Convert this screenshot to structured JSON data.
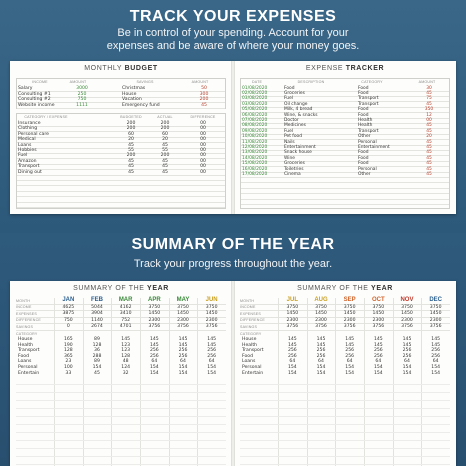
{
  "top": {
    "headline": "TRACK YOUR EXPENSES",
    "sub1": "Be in control of your spending. Account for your",
    "sub2": "expenses and be aware of where your money goes."
  },
  "budget": {
    "title_a": "MONTHLY ",
    "title_b": "BUDGET",
    "headers": [
      "INCOME",
      "AMOUNT",
      "SAVINGS",
      "AMOUNT"
    ],
    "income": [
      [
        "Salary",
        "3000"
      ],
      [
        "Consulting #1",
        "250"
      ],
      [
        "Consulting #2",
        "750"
      ],
      [
        "Website income",
        "1111"
      ]
    ],
    "savings": [
      [
        "Christmas",
        "50"
      ],
      [
        "House",
        "300"
      ],
      [
        "Vacation",
        "200"
      ],
      [
        "Emergency fund",
        "45"
      ]
    ],
    "cat_headers": [
      "CATEGORY / EXPENSE",
      "BUDGETED",
      "ACTUAL",
      "DIFFERENCE"
    ],
    "categories": [
      [
        "Insurance",
        "200",
        "200",
        "00"
      ],
      [
        "Clothing",
        "200",
        "200",
        "00"
      ],
      [
        "Personal care",
        "60",
        "60",
        "00"
      ],
      [
        "Medical",
        "20",
        "20",
        "00"
      ],
      [
        "Loans",
        "45",
        "45",
        "00"
      ],
      [
        "Hobbies",
        "55",
        "55",
        "00"
      ],
      [
        "Fuel",
        "200",
        "200",
        "00"
      ],
      [
        "Amazon",
        "45",
        "45",
        "00"
      ],
      [
        "Transport",
        "45",
        "45",
        "00"
      ],
      [
        "Dining out",
        "45",
        "45",
        "00"
      ]
    ]
  },
  "tracker": {
    "title_a": "EXPENSE ",
    "title_b": "TRACKER",
    "headers": [
      "DATE",
      "DESCRIPTION",
      "CATEGORY",
      "AMOUNT"
    ],
    "rows": [
      [
        "01/08/2020",
        "Food",
        "Food",
        "30"
      ],
      [
        "02/08/2020",
        "Groceries",
        "Food",
        "45"
      ],
      [
        "03/08/2020",
        "Fuel",
        "Transport",
        "75"
      ],
      [
        "03/08/2020",
        "Oil change",
        "Transport",
        "45"
      ],
      [
        "05/08/2020",
        "Milk, 4 bread",
        "Food",
        "350"
      ],
      [
        "06/08/2020",
        "Wine, & snacks",
        "Food",
        "12"
      ],
      [
        "07/08/2020",
        "Doctor",
        "Health",
        "00"
      ],
      [
        "08/08/2020",
        "Medicines",
        "Health",
        "45"
      ],
      [
        "09/08/2020",
        "Fuel",
        "Transport",
        "45"
      ],
      [
        "10/08/2020",
        "Pet food",
        "Other",
        "20"
      ],
      [
        "11/08/2020",
        "Nails",
        "Personal",
        "45"
      ],
      [
        "12/08/2020",
        "Entertainment",
        "Entertainment",
        "45"
      ],
      [
        "13/08/2020",
        "Snack house",
        "Food",
        "45"
      ],
      [
        "14/08/2020",
        "Wine",
        "Food",
        "45"
      ],
      [
        "15/08/2020",
        "Groceries",
        "Food",
        "45"
      ],
      [
        "16/08/2020",
        "Toiletries",
        "Personal",
        "45"
      ],
      [
        "17/08/2020",
        "Cinema",
        "Other",
        "45"
      ]
    ]
  },
  "bottom": {
    "headline": "SUMMARY OF THE YEAR",
    "sub": "Track your progress throughout the year."
  },
  "summary": {
    "title_a": "SUMMARY OF THE ",
    "title_b": "YEAR",
    "row_labels": [
      "MONTH",
      "INCOME",
      "EXPENSES",
      "DIFFERENCE",
      "SAVINGS"
    ],
    "cat_label": "CATEGORY",
    "categories": [
      "House",
      "Health",
      "Transport",
      "Food",
      "Loans",
      "Personal",
      "Entertain"
    ],
    "left_months": [
      {
        "m": "JAN",
        "color": "#2b5f8f",
        "vals": [
          "4625",
          "3875",
          "750",
          "0"
        ],
        "cats": [
          "165",
          "190",
          "128",
          "365",
          "23",
          "100",
          "33"
        ]
      },
      {
        "m": "FEB",
        "color": "#2b5f8f",
        "vals": [
          "5044",
          "3904",
          "1140",
          "2674"
        ],
        "cats": [
          "89",
          "128",
          "36",
          "288",
          "89",
          "154",
          "45"
        ]
      },
      {
        "m": "MAR",
        "color": "#3a8a3a",
        "vals": [
          "4162",
          "3410",
          "752",
          "4701"
        ],
        "cats": [
          "145",
          "123",
          "123",
          "128",
          "48",
          "124",
          "32"
        ]
      },
      {
        "m": "APR",
        "color": "#3a8a3a",
        "vals": [
          "3750",
          "1450",
          "2300",
          "3756"
        ],
        "cats": [
          "145",
          "145",
          "256",
          "256",
          "64",
          "154",
          "154"
        ]
      },
      {
        "m": "MAY",
        "color": "#3a8a3a",
        "vals": [
          "3750",
          "1450",
          "2300",
          "3756"
        ],
        "cats": [
          "145",
          "145",
          "256",
          "256",
          "64",
          "154",
          "154"
        ]
      },
      {
        "m": "JUN",
        "color": "#c9a021",
        "vals": [
          "3750",
          "1450",
          "2300",
          "3756"
        ],
        "cats": [
          "145",
          "145",
          "256",
          "256",
          "64",
          "154",
          "154"
        ]
      }
    ],
    "right_months": [
      {
        "m": "JUL",
        "color": "#c9a021",
        "vals": [
          "3750",
          "1450",
          "2300",
          "3756"
        ],
        "cats": [
          "145",
          "145",
          "256",
          "256",
          "64",
          "154",
          "154"
        ]
      },
      {
        "m": "AUG",
        "color": "#c9a021",
        "vals": [
          "3750",
          "1450",
          "2300",
          "3756"
        ],
        "cats": [
          "145",
          "145",
          "256",
          "256",
          "64",
          "154",
          "154"
        ]
      },
      {
        "m": "SEP",
        "color": "#d2632a",
        "vals": [
          "3750",
          "1450",
          "2300",
          "3756"
        ],
        "cats": [
          "145",
          "145",
          "256",
          "256",
          "64",
          "154",
          "154"
        ]
      },
      {
        "m": "OCT",
        "color": "#d2632a",
        "vals": [
          "3750",
          "1450",
          "2300",
          "3756"
        ],
        "cats": [
          "145",
          "145",
          "256",
          "256",
          "64",
          "154",
          "154"
        ]
      },
      {
        "m": "NOV",
        "color": "#c0392b",
        "vals": [
          "3750",
          "1450",
          "2300",
          "3756"
        ],
        "cats": [
          "145",
          "145",
          "256",
          "256",
          "64",
          "154",
          "154"
        ]
      },
      {
        "m": "DEC",
        "color": "#2b5f8f",
        "vals": [
          "3750",
          "1450",
          "2300",
          "3756"
        ],
        "cats": [
          "145",
          "145",
          "256",
          "256",
          "64",
          "154",
          "154"
        ]
      }
    ]
  }
}
